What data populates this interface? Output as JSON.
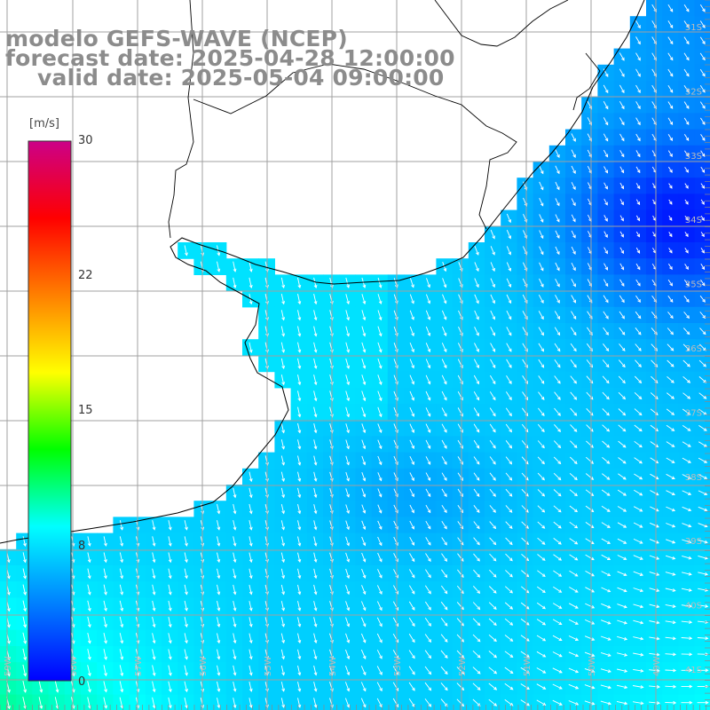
{
  "title": {
    "model": "modelo GEFS-WAVE (NCEP)",
    "forecast": "forecast date: 2025-04-28 12:00:00",
    "valid": "valid date: 2025-05-04 09:00:00"
  },
  "colorbar": {
    "unit": "[m/s]",
    "ticks": [
      "30",
      "22",
      "15",
      "8",
      "0"
    ],
    "ramp_colors": [
      "#0000ff",
      "#0080ff",
      "#00ffff",
      "#00ff00",
      "#ffff00",
      "#ff8000",
      "#ff0000",
      "#cc0088"
    ]
  },
  "latitude_labels": [
    "31S",
    "32S",
    "33S",
    "34S",
    "35S",
    "36S",
    "37S",
    "38S",
    "39S",
    "40S",
    "41S"
  ],
  "longitude_labels": [
    "59W",
    "58W",
    "57W",
    "56W",
    "55W",
    "54W",
    "53W",
    "52W",
    "51W",
    "50W",
    "49W"
  ],
  "field": {
    "variable": "wind speed and direction",
    "land_color": "#ffffff",
    "grid_color": "#a0a0a0",
    "arrow_color": "#ffffff"
  }
}
